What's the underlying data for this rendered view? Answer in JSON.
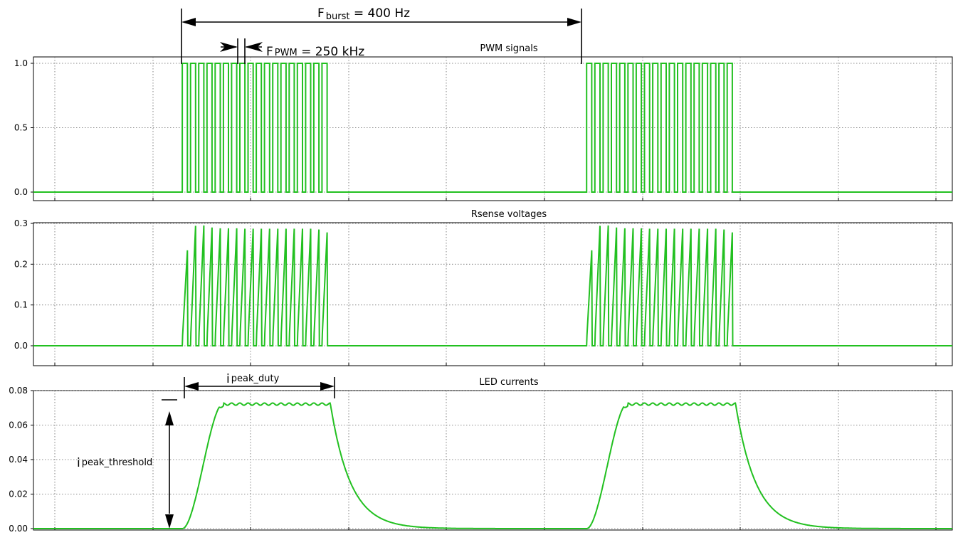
{
  "chart_data": [
    {
      "type": "line",
      "title": "PWM signals",
      "series": [],
      "ylim": [
        0,
        1.0
      ],
      "yticks": [
        "0.0",
        "0.5",
        "1.0"
      ],
      "grid": true,
      "bursts": [
        {
          "start": 0.162,
          "end": 0.323,
          "pulses": 18,
          "level": 1.0
        },
        {
          "start": 0.602,
          "end": 0.764,
          "pulses": 18,
          "level": 1.0
        }
      ],
      "baseline": 0.0
    },
    {
      "type": "line",
      "title": "Rsense voltages",
      "series": [],
      "ylim": [
        0,
        0.3
      ],
      "yticks": [
        "0.0",
        "0.1",
        "0.2",
        "0.3"
      ],
      "grid": true,
      "bursts": [
        {
          "start": 0.162,
          "end": 0.323,
          "pulses": 18,
          "peaks": [
            0.234,
            0.294,
            0.295,
            0.29,
            0.288,
            0.288,
            0.288,
            0.287,
            0.287,
            0.287,
            0.287,
            0.287,
            0.287,
            0.287,
            0.287,
            0.287,
            0.285,
            0.278
          ]
        },
        {
          "start": 0.602,
          "end": 0.764,
          "pulses": 18,
          "peaks": [
            0.234,
            0.294,
            0.295,
            0.29,
            0.288,
            0.288,
            0.288,
            0.287,
            0.287,
            0.287,
            0.287,
            0.287,
            0.287,
            0.287,
            0.287,
            0.287,
            0.285,
            0.278
          ]
        }
      ],
      "baseline": 0.0
    },
    {
      "type": "line",
      "title": "LED currents",
      "series": [],
      "ylim": [
        0,
        0.08
      ],
      "yticks": [
        "0.00",
        "0.02",
        "0.04",
        "0.06",
        "0.08"
      ],
      "grid": true,
      "bursts": [
        {
          "start": 0.162,
          "end": 0.323,
          "plateau": 0.0728,
          "ripple": 0.0013
        },
        {
          "start": 0.602,
          "end": 0.764,
          "plateau": 0.0728,
          "ripple": 0.0013
        }
      ],
      "baseline": 0.0
    }
  ],
  "annotations": {
    "f_burst_main": "F",
    "f_burst_sub": "burst",
    "f_burst_value": " = 400 Hz",
    "f_pwm_main": "F",
    "f_pwm_sub": "PWM",
    "f_pwm_value": " = 250 kHz",
    "i_peak_duty_main": "i",
    "i_peak_duty_sub": "peak_duty",
    "i_peak_threshold_main": "i",
    "i_peak_threshold_sub": "peak_threshold"
  },
  "colors": {
    "trace": "#22c020",
    "grid": "#666666",
    "frame": "#000000",
    "background": "#ffffff"
  }
}
